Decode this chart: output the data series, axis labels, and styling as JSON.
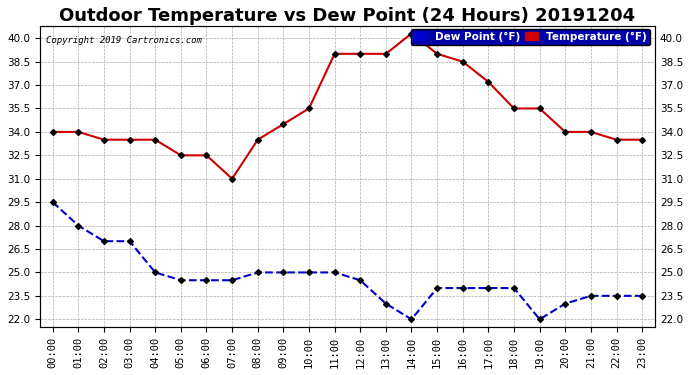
{
  "title": "Outdoor Temperature vs Dew Point (24 Hours) 20191204",
  "copyright": "Copyright 2019 Cartronics.com",
  "hours": [
    "00:00",
    "01:00",
    "02:00",
    "03:00",
    "04:00",
    "05:00",
    "06:00",
    "07:00",
    "08:00",
    "09:00",
    "10:00",
    "11:00",
    "12:00",
    "13:00",
    "14:00",
    "15:00",
    "16:00",
    "17:00",
    "18:00",
    "19:00",
    "20:00",
    "21:00",
    "22:00",
    "23:00"
  ],
  "temperature": [
    34.0,
    34.0,
    33.5,
    33.5,
    33.5,
    32.5,
    32.5,
    31.0,
    33.5,
    34.5,
    35.5,
    39.0,
    39.0,
    39.0,
    40.3,
    39.0,
    38.5,
    37.2,
    35.5,
    35.5,
    34.0,
    34.0,
    33.5,
    33.5
  ],
  "dew_point": [
    29.5,
    28.0,
    27.0,
    27.0,
    25.0,
    24.5,
    24.5,
    24.5,
    25.0,
    25.0,
    25.0,
    25.0,
    24.5,
    23.0,
    22.0,
    24.0,
    24.0,
    24.0,
    24.0,
    22.0,
    23.0,
    23.5,
    23.5,
    23.5
  ],
  "temp_color": "#cc0000",
  "dew_color": "#0000cc",
  "bg_color": "#ffffff",
  "grid_color": "#aaaaaa",
  "ylim_min": 21.5,
  "ylim_max": 40.75,
  "yticks": [
    22.0,
    23.5,
    25.0,
    26.5,
    28.0,
    29.5,
    31.0,
    32.5,
    34.0,
    35.5,
    37.0,
    38.5,
    40.0
  ],
  "legend_dew_label": "Dew Point (°F)",
  "legend_temp_label": "Temperature (°F)",
  "title_fontsize": 13,
  "tick_fontsize": 7.5,
  "marker": "D",
  "marker_size": 3,
  "linewidth": 1.5
}
